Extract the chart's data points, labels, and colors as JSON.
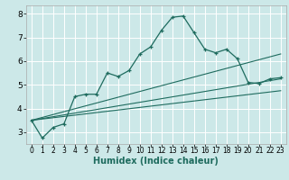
{
  "title": "",
  "xlabel": "Humidex (Indice chaleur)",
  "bg_color": "#cce8e8",
  "grid_color": "#ffffff",
  "line_color": "#1e6b5e",
  "xlim": [
    -0.5,
    23.5
  ],
  "ylim": [
    2.5,
    8.35
  ],
  "xticks": [
    0,
    1,
    2,
    3,
    4,
    5,
    6,
    7,
    8,
    9,
    10,
    11,
    12,
    13,
    14,
    15,
    16,
    17,
    18,
    19,
    20,
    21,
    22,
    23
  ],
  "yticks": [
    3,
    4,
    5,
    6,
    7,
    8
  ],
  "main_x": [
    0,
    1,
    2,
    3,
    4,
    5,
    6,
    7,
    8,
    9,
    10,
    11,
    12,
    13,
    14,
    15,
    16,
    17,
    18,
    19,
    20,
    21,
    22,
    23
  ],
  "main_y": [
    3.5,
    2.75,
    3.2,
    3.35,
    4.5,
    4.6,
    4.6,
    5.5,
    5.35,
    5.6,
    6.3,
    6.6,
    7.3,
    7.85,
    7.9,
    7.2,
    6.5,
    6.35,
    6.5,
    6.1,
    5.1,
    5.05,
    5.25,
    5.3
  ],
  "line2_x": [
    0,
    23
  ],
  "line2_y": [
    3.5,
    6.3
  ],
  "line3_x": [
    0,
    23
  ],
  "line3_y": [
    3.5,
    5.25
  ],
  "line4_x": [
    0,
    23
  ],
  "line4_y": [
    3.5,
    4.75
  ],
  "spine_color": "#aaaaaa",
  "xlabel_color": "#1e6b5e",
  "xlabel_fontsize": 7.0,
  "tick_fontsize": 5.5,
  "ytick_fontsize": 6.5
}
